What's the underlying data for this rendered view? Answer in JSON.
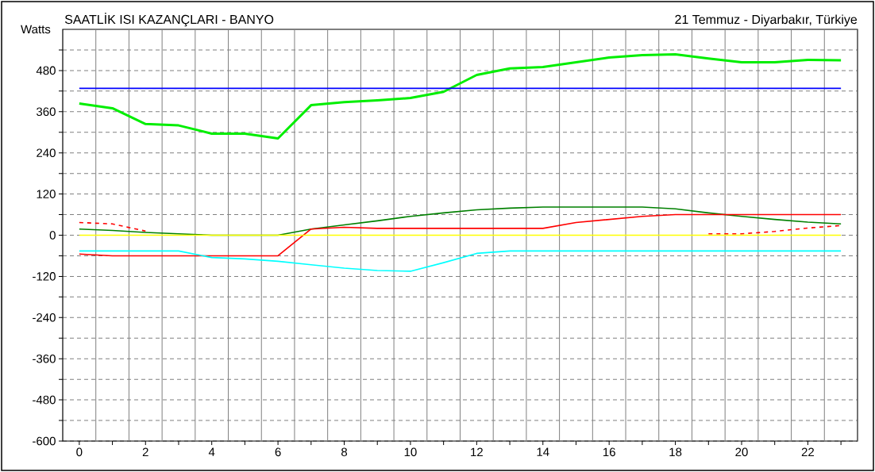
{
  "chart_data": {
    "type": "line",
    "title": "SAATLİK ISI KAZANÇLARI - BANYO",
    "subtitle": "21 Temmuz - Diyarbakır, Türkiye",
    "ylabel": "Watts",
    "x": [
      0,
      1,
      2,
      3,
      4,
      5,
      6,
      7,
      8,
      9,
      10,
      11,
      12,
      13,
      14,
      15,
      16,
      17,
      18,
      19,
      20,
      21,
      22,
      23
    ],
    "series": [
      {
        "color": "#00ee00",
        "values": [
          384,
          370,
          324,
          320,
          296,
          296,
          282,
          379,
          388,
          393,
          400,
          418,
          467,
          486,
          490,
          504,
          518,
          525,
          527,
          515,
          504,
          504,
          511,
          510
        ]
      },
      {
        "color": "#0000ff",
        "values": [
          428,
          428,
          428,
          428,
          428,
          428,
          428,
          428,
          428,
          428,
          428,
          428,
          428,
          428,
          428,
          428,
          428,
          428,
          428,
          428,
          428,
          428,
          428,
          428
        ]
      },
      {
        "color": "#008000",
        "values": [
          18,
          14,
          8,
          4,
          0,
          0,
          0,
          18,
          30,
          42,
          55,
          65,
          74,
          79,
          82,
          82,
          82,
          82,
          77,
          65,
          55,
          46,
          38,
          33
        ]
      },
      {
        "color": "#ff0000",
        "values": [
          -55,
          -60,
          -60,
          -60,
          -60,
          -60,
          -60,
          18,
          23,
          20,
          20,
          20,
          20,
          20,
          20,
          37,
          46,
          55,
          60,
          60,
          60,
          60,
          60,
          60
        ]
      },
      {
        "color": "#ff0000",
        "line_style": "dashed",
        "values": [
          37,
          33,
          12,
          null,
          null,
          null,
          null,
          null,
          null,
          null,
          null,
          null,
          null,
          null,
          null,
          null,
          null,
          null,
          null,
          4,
          4,
          11,
          21,
          28
        ]
      },
      {
        "color": "#00ffff",
        "values": [
          -46,
          -46,
          -46,
          -46,
          -65,
          -69,
          -76,
          -86,
          -96,
          -103,
          -105,
          -80,
          -53,
          -46,
          -46,
          -46,
          -46,
          -46,
          -46,
          -46,
          -46,
          -46,
          -46,
          -46
        ]
      },
      {
        "color": "#ffff00",
        "values": [
          0,
          0,
          0,
          0,
          0,
          0,
          0,
          0,
          0,
          0,
          0,
          0,
          0,
          0,
          0,
          0,
          0,
          0,
          0,
          0,
          0,
          0,
          0,
          0
        ]
      }
    ],
    "xlim": [
      -0.5,
      23.5
    ],
    "ylim": [
      -600,
      600
    ],
    "xticks": [
      0,
      {
        "value": 1,
        "label": null
      },
      2,
      {
        "value": 3,
        "label": null
      },
      4,
      {
        "value": 5,
        "label": null
      },
      6,
      {
        "value": 7,
        "label": null
      },
      8,
      {
        "value": 9,
        "label": null
      },
      10,
      {
        "value": 11,
        "label": null
      },
      12,
      {
        "value": 13,
        "label": null
      },
      14,
      {
        "value": 15,
        "label": null
      },
      16,
      {
        "value": 17,
        "label": null
      },
      18,
      {
        "value": 19,
        "label": null
      },
      20,
      {
        "value": 21,
        "label": null
      },
      22,
      {
        "value": 23,
        "label": null
      }
    ],
    "yticks": [
      -600,
      {
        "value": -540,
        "label": null
      },
      -480,
      {
        "value": -420,
        "label": null
      },
      -360,
      {
        "value": -300,
        "label": null
      },
      -240,
      {
        "value": -180,
        "label": null
      },
      -120,
      {
        "value": -60,
        "label": null
      },
      0,
      {
        "value": 60,
        "label": null
      },
      120,
      {
        "value": 180,
        "label": null
      },
      240,
      {
        "value": 300,
        "label": null
      },
      360,
      {
        "value": 420,
        "label": null
      },
      480,
      {
        "value": 540,
        "label": null
      }
    ],
    "grid": true,
    "marker": "none",
    "line_style": "solid"
  }
}
